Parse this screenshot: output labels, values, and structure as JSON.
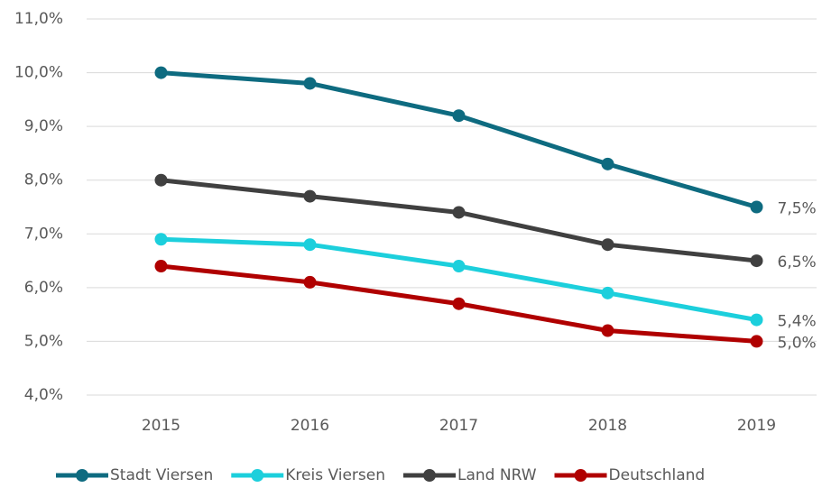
{
  "chart_data": {
    "type": "line",
    "categories": [
      "2015",
      "2016",
      "2017",
      "2018",
      "2019"
    ],
    "series": [
      {
        "name": "Stadt Viersen",
        "color": "#0e6b80",
        "values": [
          10.0,
          9.8,
          9.2,
          8.3,
          7.5
        ],
        "value_labels": [
          null,
          null,
          null,
          null,
          "7,5%"
        ]
      },
      {
        "name": "Kreis Viersen",
        "color": "#1ccfdc",
        "values": [
          6.9,
          6.8,
          6.4,
          5.9,
          5.4
        ],
        "value_labels": [
          null,
          null,
          null,
          null,
          "5,4%"
        ]
      },
      {
        "name": "Land NRW",
        "color": "#404040",
        "values": [
          8.0,
          7.7,
          7.4,
          6.8,
          6.5
        ],
        "value_labels": [
          null,
          null,
          null,
          null,
          "6,5%"
        ]
      },
      {
        "name": "Deutschland",
        "color": "#b00000",
        "values": [
          6.4,
          6.1,
          5.7,
          5.2,
          5.0
        ],
        "value_labels": [
          null,
          null,
          null,
          null,
          "5,0%"
        ]
      }
    ],
    "ylim": [
      4.0,
      11.0
    ],
    "yticks": [
      {
        "value": 4.0,
        "label": "4,0%"
      },
      {
        "value": 5.0,
        "label": "5,0%"
      },
      {
        "value": 6.0,
        "label": "6,0%"
      },
      {
        "value": 7.0,
        "label": "7,0%"
      },
      {
        "value": 8.0,
        "label": "8,0%"
      },
      {
        "value": 9.0,
        "label": "9,0%"
      },
      {
        "value": 10.0,
        "label": "10,0%"
      },
      {
        "value": 11.0,
        "label": "11,0%"
      }
    ],
    "grid": true,
    "legend": "bottom"
  }
}
